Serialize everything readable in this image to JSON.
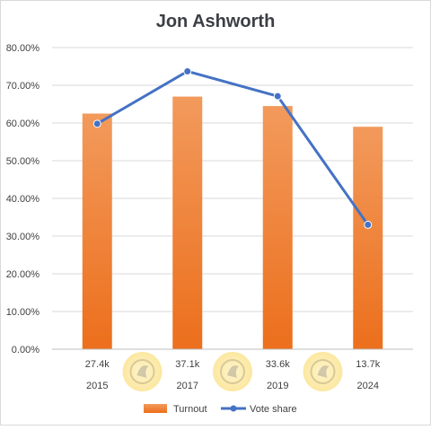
{
  "chart_data": {
    "type": "bar",
    "title": "Jon Ashworth",
    "categories": [
      "2015",
      "2017",
      "2019",
      "2024"
    ],
    "bar_labels": [
      "27.4k",
      "37.1k",
      "33.6k",
      "13.7k"
    ],
    "series": [
      {
        "name": "Turnout",
        "type": "bar",
        "values": [
          62.5,
          67.0,
          64.5,
          59.0
        ]
      },
      {
        "name": "Vote share",
        "type": "line",
        "values": [
          59.8,
          73.7,
          67.1,
          33.0
        ]
      }
    ],
    "ylim": [
      0,
      80
    ],
    "yticks": [
      0,
      10,
      20,
      30,
      40,
      50,
      60,
      70,
      80
    ],
    "ytick_labels": [
      "0.00%",
      "10.00%",
      "20.00%",
      "30.00%",
      "40.00%",
      "50.00%",
      "60.00%",
      "70.00%",
      "80.00%"
    ],
    "grid": true,
    "legend_position": "bottom",
    "colors": {
      "bar_top": "#f29a5c",
      "bar_bottom": "#ec6f1c",
      "line": "#4472c4"
    }
  }
}
